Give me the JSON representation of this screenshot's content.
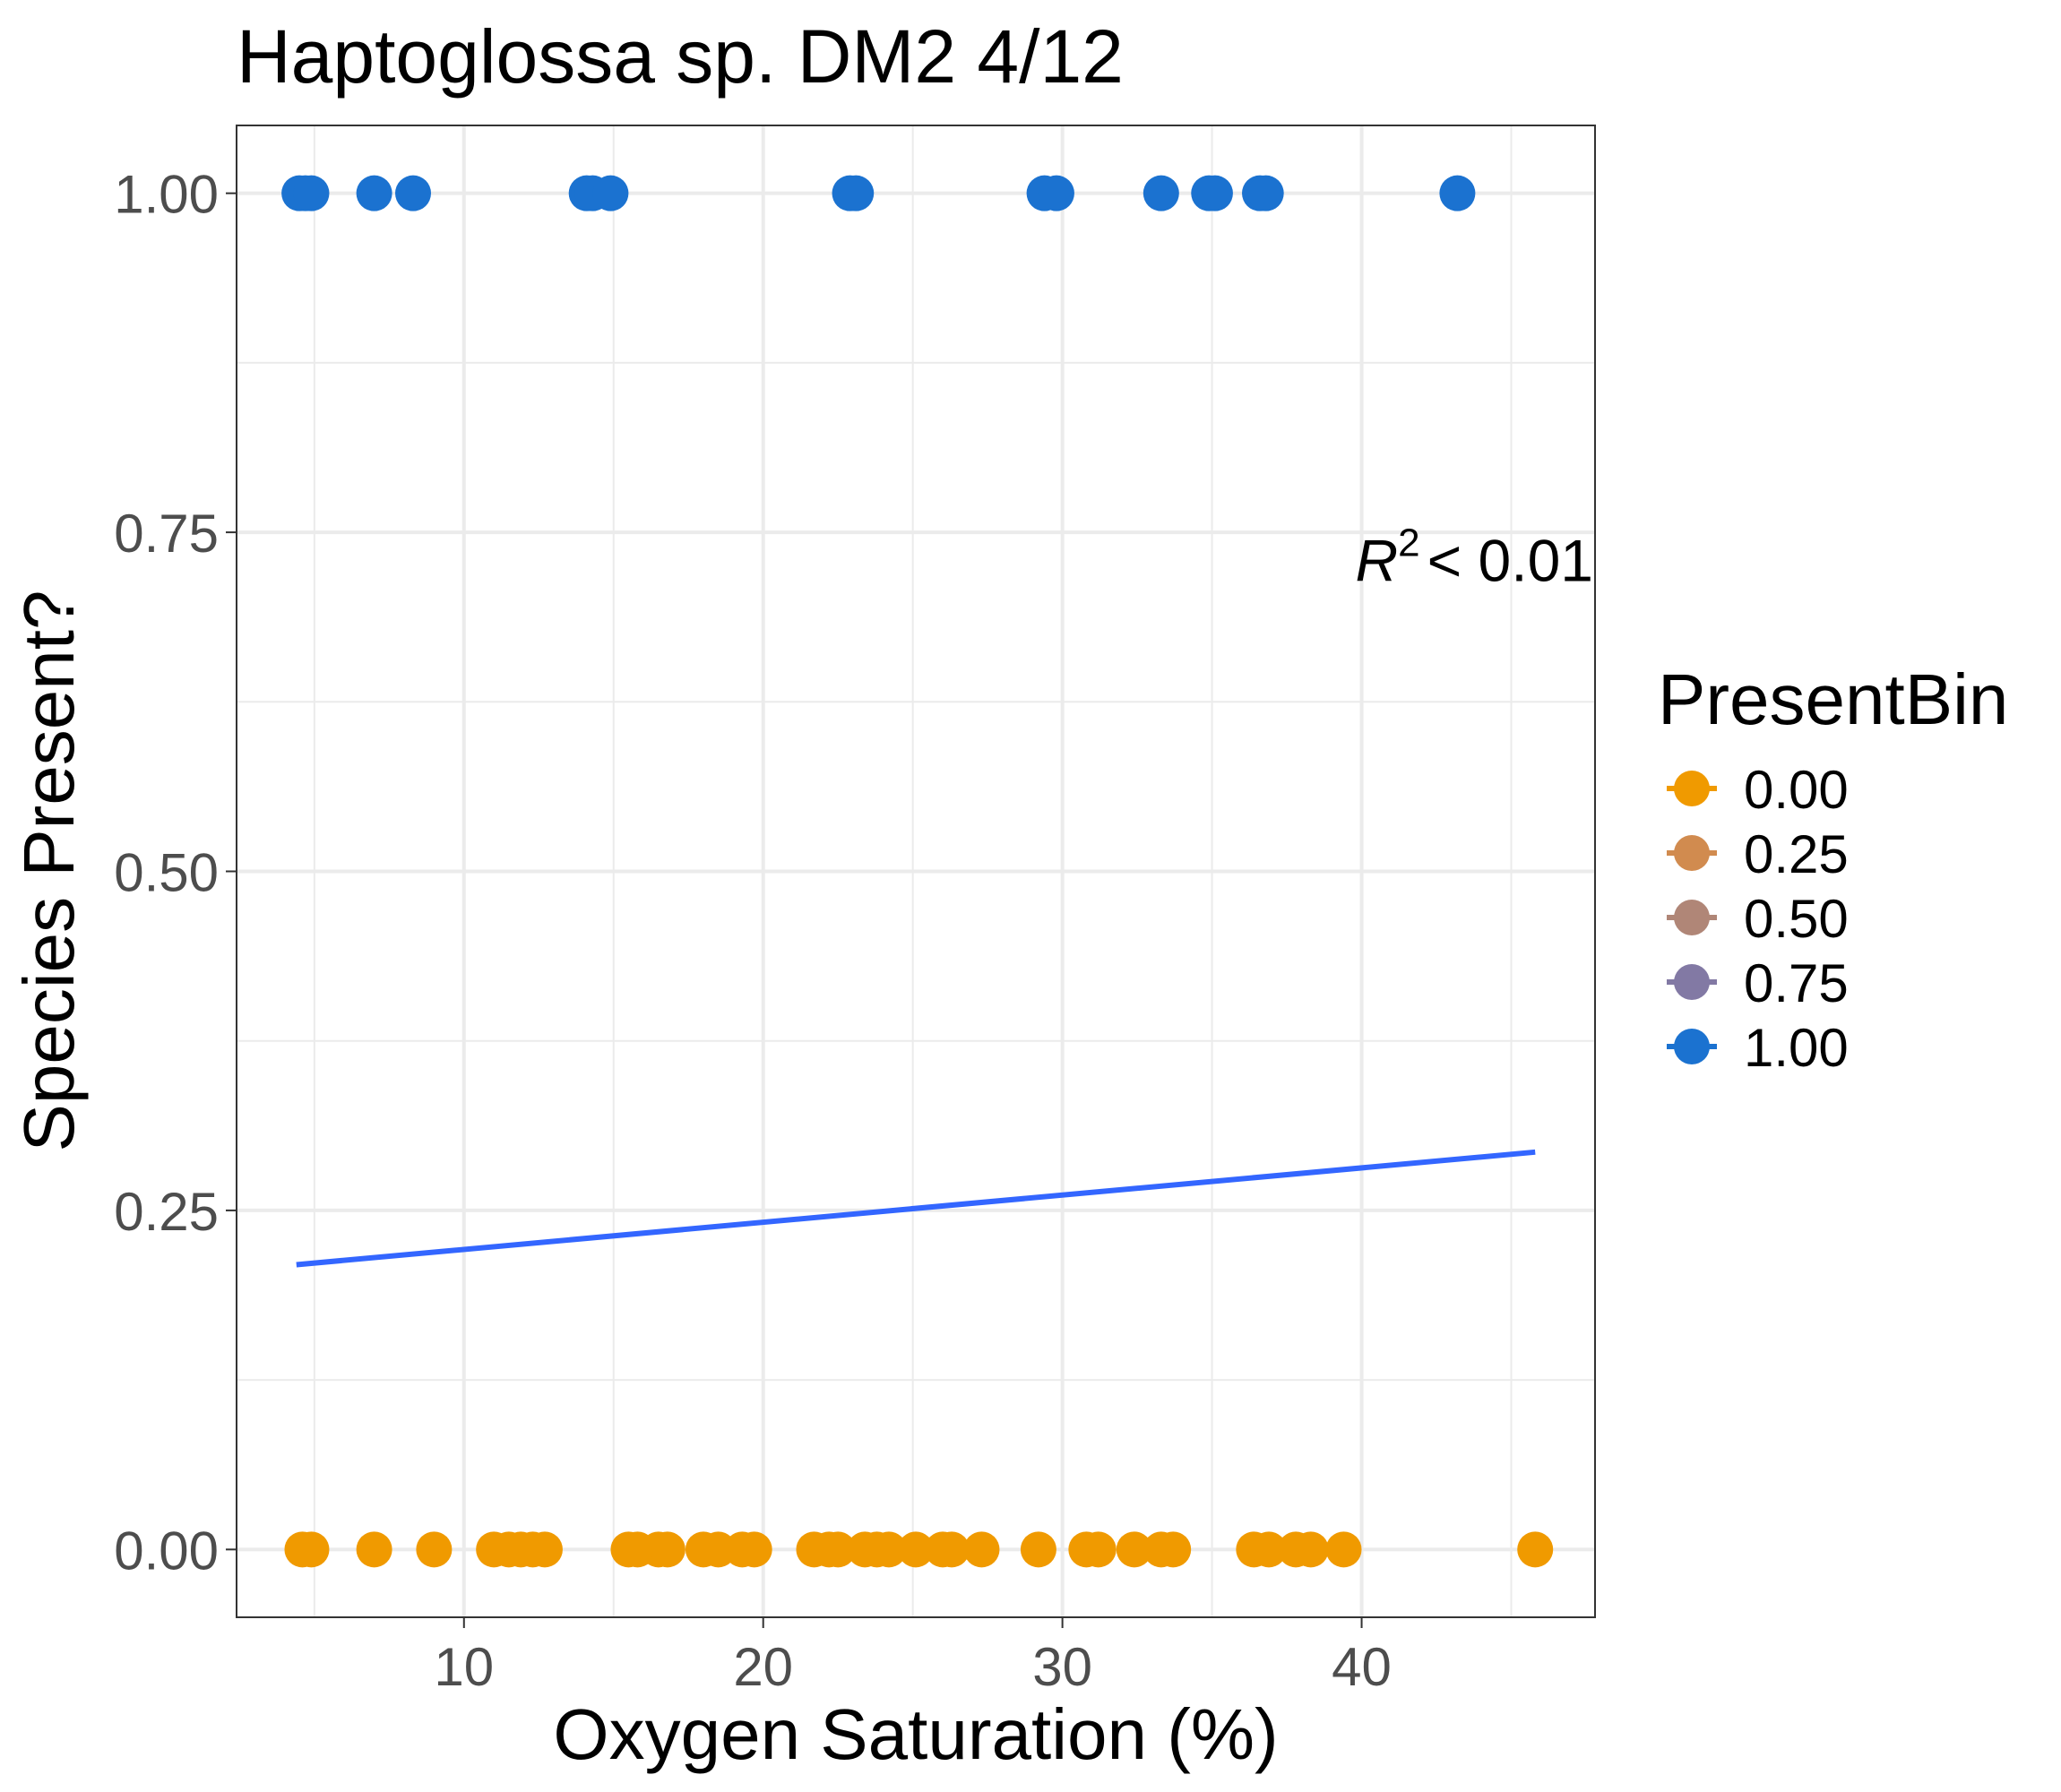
{
  "chart_data": {
    "type": "scatter",
    "title": "Haptoglossa sp. DM2 4/12",
    "xlabel": "Oxygen Saturation (%)",
    "ylabel": "Species Present?",
    "xlim": [
      2.4,
      47.8
    ],
    "ylim": [
      -0.05,
      1.05
    ],
    "x_ticks": [
      10,
      20,
      30,
      40
    ],
    "x_tick_labels": [
      "10",
      "20",
      "30",
      "40"
    ],
    "y_ticks": [
      0,
      0.25,
      0.5,
      0.75,
      1.0
    ],
    "y_tick_labels": [
      "0.00",
      "0.25",
      "0.50",
      "0.75",
      "1.00"
    ],
    "grid": true,
    "legend": {
      "title": "PresentBin",
      "placement": "right",
      "entries": [
        {
          "label": "0.00",
          "color": "#F09A00"
        },
        {
          "label": "0.25",
          "color": "#D18B4F"
        },
        {
          "label": "0.50",
          "color": "#B08677"
        },
        {
          "label": "0.75",
          "color": "#8279A4"
        },
        {
          "label": "1.00",
          "color": "#1B72D0"
        }
      ]
    },
    "annotation": {
      "r_label": "R",
      "superscript": "2",
      "rest": "< 0.01",
      "x": 47.8,
      "y": 0.73
    },
    "series": [
      {
        "value": 1.0,
        "color": "#1B72D0",
        "x": [
          4.5,
          4.7,
          4.9,
          7.0,
          8.3,
          14.1,
          14.3,
          14.9,
          22.9,
          23.1,
          29.4,
          29.8,
          33.3,
          34.9,
          35.1,
          36.6,
          36.8,
          43.2
        ]
      },
      {
        "value": 0.0,
        "color": "#F09A00",
        "x": [
          4.6,
          4.9,
          7.0,
          9.0,
          11.0,
          11.5,
          11.9,
          12.3,
          12.7,
          15.5,
          15.8,
          16.5,
          16.8,
          18.0,
          18.5,
          19.3,
          19.7,
          21.7,
          22.2,
          22.5,
          23.4,
          23.8,
          24.2,
          25.1,
          26.0,
          26.3,
          27.3,
          29.2,
          30.8,
          31.2,
          32.4,
          33.3,
          33.7,
          36.4,
          36.9,
          37.8,
          38.3,
          39.4,
          45.8
        ]
      }
    ],
    "fit_line": {
      "color": "#3366FF",
      "x": [
        4.4,
        45.8
      ],
      "y": [
        0.21,
        0.293
      ]
    }
  }
}
